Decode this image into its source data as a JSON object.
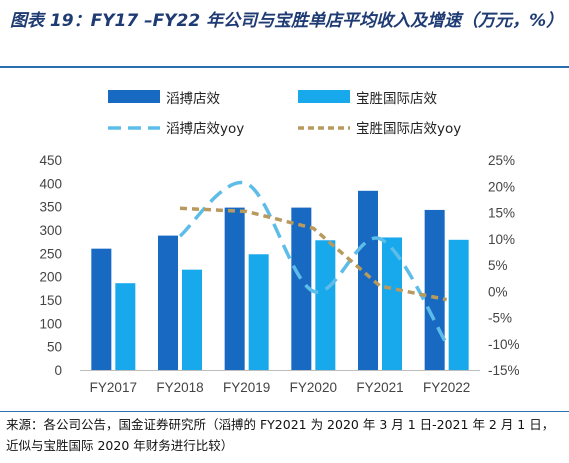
{
  "title": "图表 19：FY17 –FY22 年公司与宝胜单店平均收入及增速（万元，%）",
  "source": "来源：各公司公告，国金证券研究所（滔搏的 FY2021 为 2020 年 3 月 1 日-2021 年 2 月 1 日，近似与宝胜国际 2020 年财务进行比较）",
  "colors": {
    "bar_dark": "#1769c2",
    "bar_light": "#18a8ec",
    "line_dash_blue": "#5dbde8",
    "line_dash_brown": "#b89a5e",
    "accent": "#1f3b73"
  },
  "chart_data": {
    "type": "bar",
    "categories": [
      "FY2017",
      "FY2018",
      "FY2019",
      "FY2020",
      "FY2021",
      "FY2022"
    ],
    "series": [
      {
        "name": "滔搏店效",
        "kind": "bar",
        "axis": "left",
        "values": [
          260,
          288,
          348,
          348,
          384,
          343
        ]
      },
      {
        "name": "宝胜国际店效",
        "kind": "bar",
        "axis": "left",
        "values": [
          186,
          215,
          248,
          278,
          284,
          279
        ]
      },
      {
        "name": "滔搏店效yoy",
        "kind": "line",
        "axis": "right",
        "style": "dashed-smooth",
        "values": [
          null,
          10.5,
          20.5,
          0,
          10,
          -10
        ]
      },
      {
        "name": "宝胜国际店效yoy",
        "kind": "line",
        "axis": "right",
        "style": "dashed",
        "values": [
          null,
          15.8,
          15.2,
          12,
          1,
          -1.6
        ]
      }
    ],
    "left_axis": {
      "min": 0,
      "max": 450,
      "step": 50,
      "tick_labels": [
        "0",
        "50",
        "100",
        "150",
        "200",
        "250",
        "300",
        "350",
        "400",
        "450"
      ]
    },
    "right_axis": {
      "min": -15,
      "max": 25,
      "step": 5,
      "tick_labels": [
        "-15%",
        "-10%",
        "-5%",
        "0%",
        "5%",
        "10%",
        "15%",
        "20%",
        "25%"
      ]
    },
    "legend": {
      "position": "top",
      "columns": 2
    },
    "grid": false
  }
}
